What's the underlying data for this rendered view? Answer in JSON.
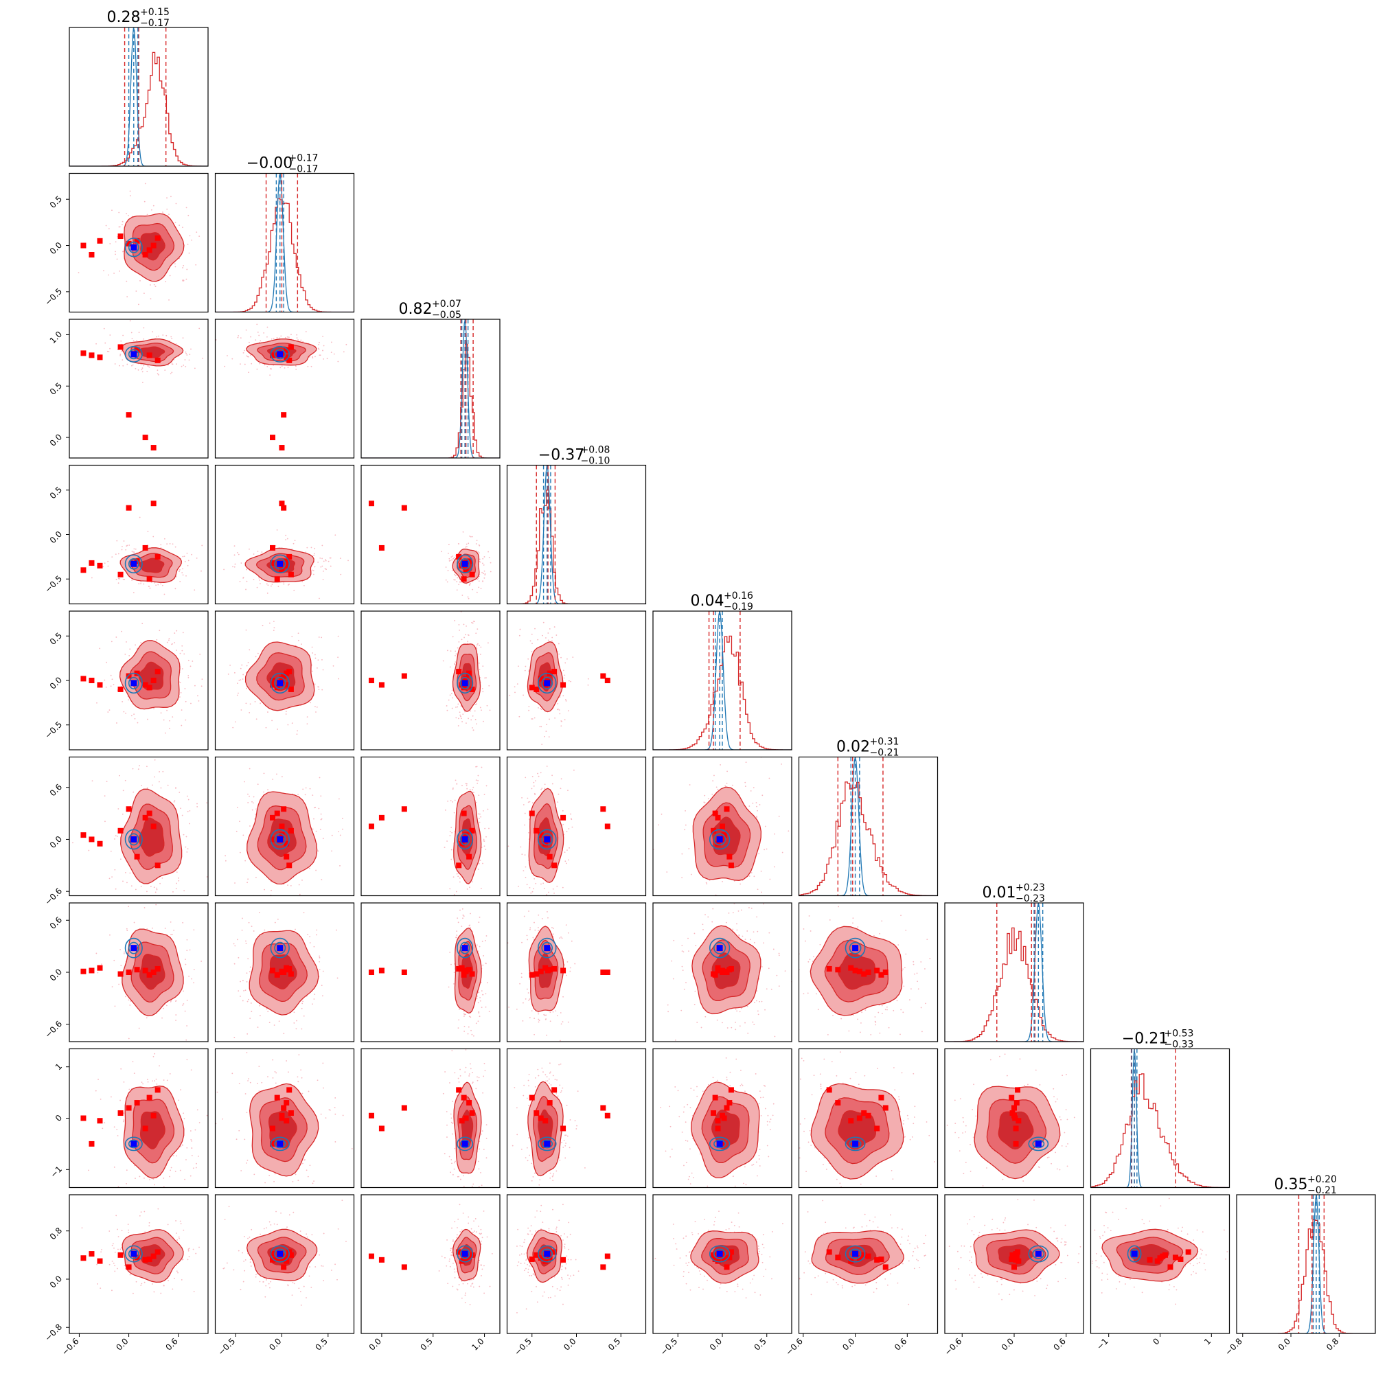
{
  "chart_data": {
    "type": "corner",
    "n_params": 9,
    "colors": {
      "red_line": "#d62728",
      "red_fill_outer": "#f3aeb0",
      "red_fill_mid": "#e86a70",
      "red_fill_inner": "#cf2a31",
      "red_marker": "#ff0000",
      "blue_line": "#1f77b4",
      "blue_marker": "#0000ff",
      "scatter_dots": "#f7b8c0"
    },
    "diag_titles": [
      {
        "value": "0.28",
        "plus": "+0.15",
        "minus": "−0.17"
      },
      {
        "value": "−0.00",
        "plus": "+0.17",
        "minus": "−0.17"
      },
      {
        "value": "0.82",
        "plus": "+0.07",
        "minus": "−0.05"
      },
      {
        "value": "−0.37",
        "plus": "+0.08",
        "minus": "−0.10"
      },
      {
        "value": "0.04",
        "plus": "+0.16",
        "minus": "−0.19"
      },
      {
        "value": "0.02",
        "plus": "+0.31",
        "minus": "−0.21"
      },
      {
        "value": "0.01",
        "plus": "+0.23",
        "minus": "−0.23"
      },
      {
        "value": "−0.21",
        "plus": "+0.53",
        "minus": "−0.33"
      },
      {
        "value": "0.35",
        "plus": "+0.20",
        "minus": "−0.21"
      }
    ],
    "params": [
      {
        "range": [
          -0.72,
          0.96
        ],
        "ticks": [
          -0.6,
          0.0,
          0.6
        ],
        "tick_labels": [
          "−0.6",
          "0.0",
          "0.6"
        ],
        "red_median": 0.12,
        "red_lo": -0.05,
        "red_hi": 0.45,
        "blue_center": 0.06,
        "blue_sd": 0.035,
        "blue_q": [
          0.0,
          0.06,
          0.11
        ],
        "red_mode": 0.28,
        "red_sd": 0.17,
        "red_mode2": 0.35,
        "red_mix": 0.55
      },
      {
        "range": [
          -0.72,
          0.78
        ],
        "ticks": [
          -0.5,
          0.0,
          0.5
        ],
        "tick_labels": [
          "−0.5",
          "0.0",
          "0.5"
        ],
        "red_median": -0.0,
        "red_lo": -0.17,
        "red_hi": 0.17,
        "blue_center": -0.02,
        "blue_sd": 0.035,
        "blue_q": [
          -0.06,
          -0.02,
          0.02
        ],
        "red_mode": 0.0,
        "red_sd": 0.17
      },
      {
        "range": [
          -0.2,
          1.15
        ],
        "ticks": [
          0.0,
          0.5,
          1.0
        ],
        "tick_labels": [
          "0.0",
          "0.5",
          "1.0"
        ],
        "red_median": 0.82,
        "red_lo": 0.77,
        "red_hi": 0.89,
        "blue_center": 0.81,
        "blue_sd": 0.025,
        "blue_q": [
          0.78,
          0.81,
          0.84
        ],
        "red_mode": 0.83,
        "red_sd": 0.06
      },
      {
        "range": [
          -0.78,
          0.78
        ],
        "ticks": [
          -0.5,
          0.0,
          0.5
        ],
        "tick_labels": [
          "−0.5",
          "0.0",
          "0.5"
        ],
        "red_median": -0.32,
        "red_lo": -0.45,
        "red_hi": -0.24,
        "blue_center": -0.33,
        "blue_sd": 0.035,
        "blue_q": [
          -0.37,
          -0.33,
          -0.29
        ],
        "red_mode": -0.35,
        "red_sd": 0.09
      },
      {
        "range": [
          -0.78,
          0.78
        ],
        "ticks": [
          -0.5,
          0.0,
          0.5
        ],
        "tick_labels": [
          "−0.5",
          "0.0",
          "0.5"
        ],
        "red_median": -0.1,
        "red_lo": -0.15,
        "red_hi": 0.2,
        "blue_center": -0.03,
        "blue_sd": 0.04,
        "blue_q": [
          -0.08,
          -0.03,
          0.0
        ],
        "red_mode": 0.04,
        "red_sd": 0.18,
        "red_mode2": 0.1,
        "red_mix": 0.5
      },
      {
        "range": [
          -0.65,
          0.95
        ],
        "ticks": [
          -0.6,
          0.0,
          0.6
        ],
        "tick_labels": [
          "−0.6",
          "0.0",
          "0.6"
        ],
        "red_median": -0.03,
        "red_lo": -0.2,
        "red_hi": 0.32,
        "blue_center": 0.0,
        "blue_sd": 0.04,
        "blue_q": [
          -0.05,
          0.0,
          0.05
        ],
        "red_mode": 0.02,
        "red_sd": 0.25,
        "red_mode2": -0.05,
        "red_mix": 0.55
      },
      {
        "range": [
          -0.8,
          0.8
        ],
        "ticks": [
          -0.6,
          0.0,
          0.6
        ],
        "tick_labels": [
          "−0.6",
          "0.0",
          "0.6"
        ],
        "red_median": 0.2,
        "red_lo": -0.2,
        "red_hi": 0.24,
        "blue_center": 0.28,
        "blue_sd": 0.04,
        "blue_q": [
          0.23,
          0.28,
          0.33
        ],
        "red_mode": 0.01,
        "red_sd": 0.23
      },
      {
        "range": [
          -1.35,
          1.35
        ],
        "ticks": [
          -1.0,
          0.0,
          1.0
        ],
        "tick_labels": [
          "−1",
          "0",
          "1"
        ],
        "red_median": -0.5,
        "red_lo": -0.56,
        "red_hi": 0.3,
        "blue_center": -0.5,
        "blue_sd": 0.04,
        "blue_q": [
          -0.55,
          -0.5,
          -0.45
        ],
        "red_mode": -0.21,
        "red_sd": 0.42,
        "red_mode2": -0.45,
        "red_mix": 0.45
      },
      {
        "range": [
          -0.9,
          1.4
        ],
        "ticks": [
          -0.8,
          0.0,
          0.8
        ],
        "tick_labels": [
          "−0.8",
          "0.0",
          "0.8"
        ],
        "red_median": 0.35,
        "red_lo": 0.13,
        "red_hi": 0.55,
        "blue_center": 0.42,
        "blue_sd": 0.045,
        "blue_q": [
          0.37,
          0.42,
          0.47
        ],
        "red_mode": 0.4,
        "red_sd": 0.2
      }
    ],
    "truth_point": [
      0.06,
      -0.02,
      0.81,
      -0.33,
      -0.03,
      0.0,
      0.28,
      -0.5,
      0.42
    ],
    "outlier_markers": [
      [
        -0.45,
        -0.1,
        0.8,
        -0.32,
        0.0,
        0.0,
        0.02,
        -0.5,
        0.42
      ],
      [
        -0.55,
        0.0,
        0.82,
        -0.4,
        0.02,
        0.05,
        0.01,
        0.0,
        0.35
      ],
      [
        -0.35,
        0.05,
        0.78,
        -0.35,
        -0.05,
        -0.05,
        0.05,
        -0.05,
        0.3
      ],
      [
        -0.1,
        0.1,
        0.88,
        -0.45,
        -0.1,
        0.1,
        -0.02,
        0.1,
        0.4
      ],
      [
        0.0,
        0.02,
        0.22,
        0.3,
        0.05,
        0.35,
        0.0,
        0.2,
        0.2
      ],
      [
        0.2,
        -0.1,
        0.0,
        -0.15,
        -0.05,
        0.25,
        0.02,
        -0.2,
        0.32
      ],
      [
        0.3,
        0.0,
        -0.1,
        0.35,
        0.0,
        0.15,
        0.0,
        0.05,
        0.38
      ],
      [
        0.1,
        0.05,
        0.85,
        -0.3,
        0.08,
        -0.2,
        0.03,
        0.3,
        0.36
      ],
      [
        0.25,
        -0.05,
        0.8,
        -0.5,
        -0.08,
        0.3,
        -0.03,
        0.4,
        0.33
      ],
      [
        0.35,
        0.08,
        0.75,
        -0.25,
        0.1,
        -0.3,
        0.04,
        0.55,
        0.45
      ]
    ]
  }
}
